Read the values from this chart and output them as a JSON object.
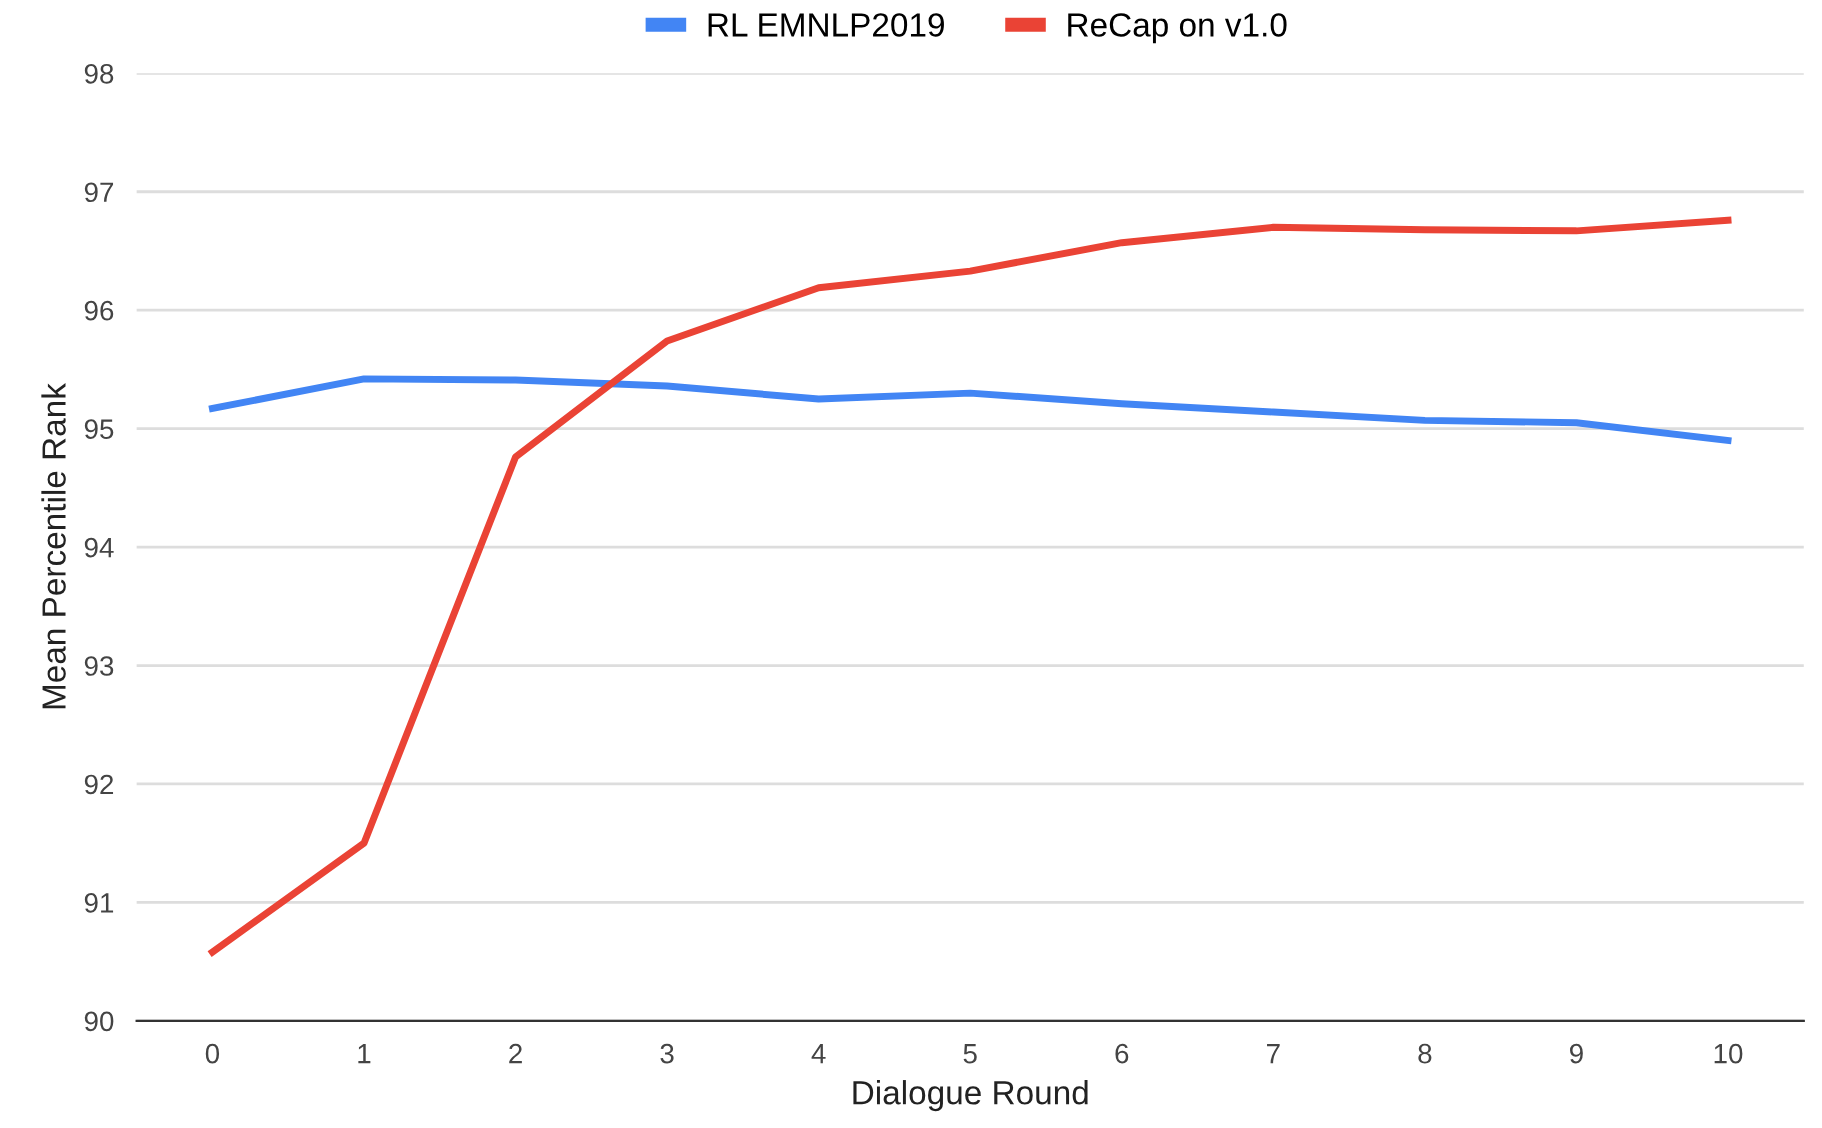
{
  "chart_data": {
    "type": "line",
    "xlabel": "Dialogue Round",
    "ylabel": "Mean Percentile Rank",
    "x": [
      0,
      1,
      2,
      3,
      4,
      5,
      6,
      7,
      8,
      9,
      10
    ],
    "series": [
      {
        "name": "RL EMNLP2019",
        "color": "#4285f4",
        "values": [
          95.17,
          95.42,
          95.41,
          95.36,
          95.25,
          95.3,
          95.21,
          95.14,
          95.07,
          95.05,
          94.9
        ]
      },
      {
        "name": "ReCap on v1.0",
        "color": "#ea4335",
        "values": [
          90.58,
          91.5,
          94.76,
          95.74,
          96.19,
          96.33,
          96.57,
          96.7,
          96.68,
          96.67,
          96.76
        ]
      }
    ],
    "xlim": [
      -0.5,
      10.5
    ],
    "xticks": [
      0,
      1,
      2,
      3,
      4,
      5,
      6,
      7,
      8,
      9,
      10
    ],
    "ylim": [
      90,
      98
    ],
    "yticks": [
      90,
      91,
      92,
      93,
      94,
      95,
      96,
      97,
      98
    ],
    "grid": "y",
    "legend": "top",
    "marker": "none",
    "line_style": "solid"
  }
}
